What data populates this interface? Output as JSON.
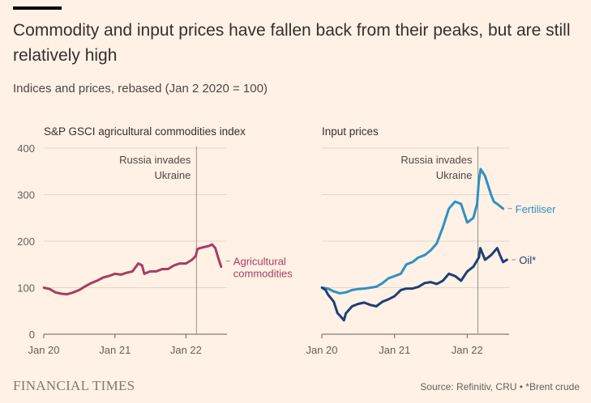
{
  "title": "Commodity and input prices have fallen back from their peaks, but are still relatively high",
  "subtitle": "Indices and prices, rebased (Jan 2 2020 = 100)",
  "footer": {
    "brand": "FINANCIAL TIMES",
    "source": "Source: Refinitiv, CRU • *Brent crude"
  },
  "colors": {
    "background": "#fff1e5",
    "agricultural": "#a63d62",
    "fertiliser": "#2f91c2",
    "oil": "#1d3f75",
    "grid": "#e2d6cc",
    "axis": "#66605c",
    "event_line": "#99918b"
  },
  "chart_data": [
    {
      "type": "line",
      "title": "S&P GSCI agricultural commodities index",
      "x_ticks": [
        "Jan 20",
        "Jan 21",
        "Jan 22"
      ],
      "y_ticks": [
        "0",
        "100",
        "200",
        "300",
        "400"
      ],
      "ylim": [
        0,
        400
      ],
      "xlim": [
        "2020-01-01",
        "2022-07-31"
      ],
      "grid": true,
      "annotation": {
        "date": "2022-02-24",
        "lines": [
          "Russia invades",
          "Ukraine"
        ]
      },
      "series": [
        {
          "name": "Agricultural commodities",
          "label_lines": [
            "Agricultural",
            "commodities"
          ],
          "color": "#a63d62",
          "x": [
            "2020-01-02",
            "2020-02-01",
            "2020-03-01",
            "2020-04-01",
            "2020-05-01",
            "2020-06-01",
            "2020-07-01",
            "2020-08-01",
            "2020-09-01",
            "2020-10-01",
            "2020-11-01",
            "2020-12-01",
            "2021-01-01",
            "2021-02-01",
            "2021-03-01",
            "2021-04-01",
            "2021-05-01",
            "2021-05-20",
            "2021-06-01",
            "2021-07-01",
            "2021-08-01",
            "2021-09-01",
            "2021-10-01",
            "2021-11-01",
            "2021-12-01",
            "2022-01-01",
            "2022-02-01",
            "2022-02-20",
            "2022-03-01",
            "2022-03-15",
            "2022-04-01",
            "2022-05-01",
            "2022-05-15",
            "2022-06-01",
            "2022-06-15",
            "2022-07-01"
          ],
          "y": [
            100,
            97,
            90,
            87,
            86,
            90,
            95,
            103,
            110,
            115,
            122,
            125,
            130,
            128,
            132,
            135,
            152,
            148,
            130,
            135,
            135,
            140,
            140,
            148,
            152,
            152,
            160,
            168,
            183,
            185,
            187,
            190,
            193,
            185,
            165,
            145
          ]
        }
      ]
    },
    {
      "type": "line",
      "title": "Input prices",
      "x_ticks": [
        "Jan 20",
        "Jan 21",
        "Jan 22"
      ],
      "y_ticks": [
        "0",
        "100",
        "200",
        "300",
        "400"
      ],
      "ylim": [
        0,
        400
      ],
      "xlim": [
        "2020-01-01",
        "2022-07-31"
      ],
      "grid": true,
      "annotation": {
        "date": "2022-02-24",
        "lines": [
          "Russia invades",
          "Ukraine"
        ]
      },
      "series": [
        {
          "name": "Fertiliser",
          "label_lines": [
            "Fertiliser"
          ],
          "color": "#2f91c2",
          "x": [
            "2020-01-02",
            "2020-02-01",
            "2020-03-01",
            "2020-04-01",
            "2020-05-01",
            "2020-06-01",
            "2020-07-01",
            "2020-08-01",
            "2020-09-01",
            "2020-10-01",
            "2020-11-01",
            "2020-12-01",
            "2021-01-01",
            "2021-02-01",
            "2021-03-01",
            "2021-04-01",
            "2021-05-01",
            "2021-06-01",
            "2021-07-01",
            "2021-08-01",
            "2021-09-01",
            "2021-10-01",
            "2021-11-01",
            "2021-12-01",
            "2022-01-01",
            "2022-02-01",
            "2022-02-20",
            "2022-03-01",
            "2022-03-10",
            "2022-04-01",
            "2022-05-01",
            "2022-05-15",
            "2022-06-01",
            "2022-07-01"
          ],
          "y": [
            100,
            98,
            92,
            88,
            90,
            95,
            97,
            98,
            100,
            102,
            110,
            120,
            125,
            130,
            150,
            155,
            165,
            170,
            180,
            195,
            230,
            270,
            285,
            280,
            240,
            250,
            280,
            330,
            355,
            340,
            300,
            285,
            280,
            270
          ]
        },
        {
          "name": "Oil*",
          "label_lines": [
            "Oil*"
          ],
          "color": "#1d3f75",
          "x": [
            "2020-01-02",
            "2020-01-20",
            "2020-02-01",
            "2020-03-01",
            "2020-03-20",
            "2020-04-01",
            "2020-04-21",
            "2020-05-01",
            "2020-06-01",
            "2020-07-01",
            "2020-08-01",
            "2020-09-01",
            "2020-10-01",
            "2020-11-01",
            "2020-12-01",
            "2021-01-01",
            "2021-02-01",
            "2021-03-01",
            "2021-04-01",
            "2021-05-01",
            "2021-06-01",
            "2021-07-01",
            "2021-08-01",
            "2021-09-01",
            "2021-10-01",
            "2021-11-01",
            "2021-12-01",
            "2022-01-01",
            "2022-02-01",
            "2022-03-01",
            "2022-03-08",
            "2022-04-01",
            "2022-05-01",
            "2022-06-01",
            "2022-06-15",
            "2022-07-01",
            "2022-07-20"
          ],
          "y": [
            100,
            95,
            85,
            70,
            45,
            40,
            30,
            45,
            60,
            65,
            68,
            63,
            60,
            70,
            75,
            82,
            95,
            98,
            98,
            102,
            110,
            112,
            108,
            115,
            130,
            125,
            115,
            135,
            145,
            165,
            185,
            160,
            170,
            185,
            170,
            155,
            160
          ]
        }
      ]
    }
  ]
}
